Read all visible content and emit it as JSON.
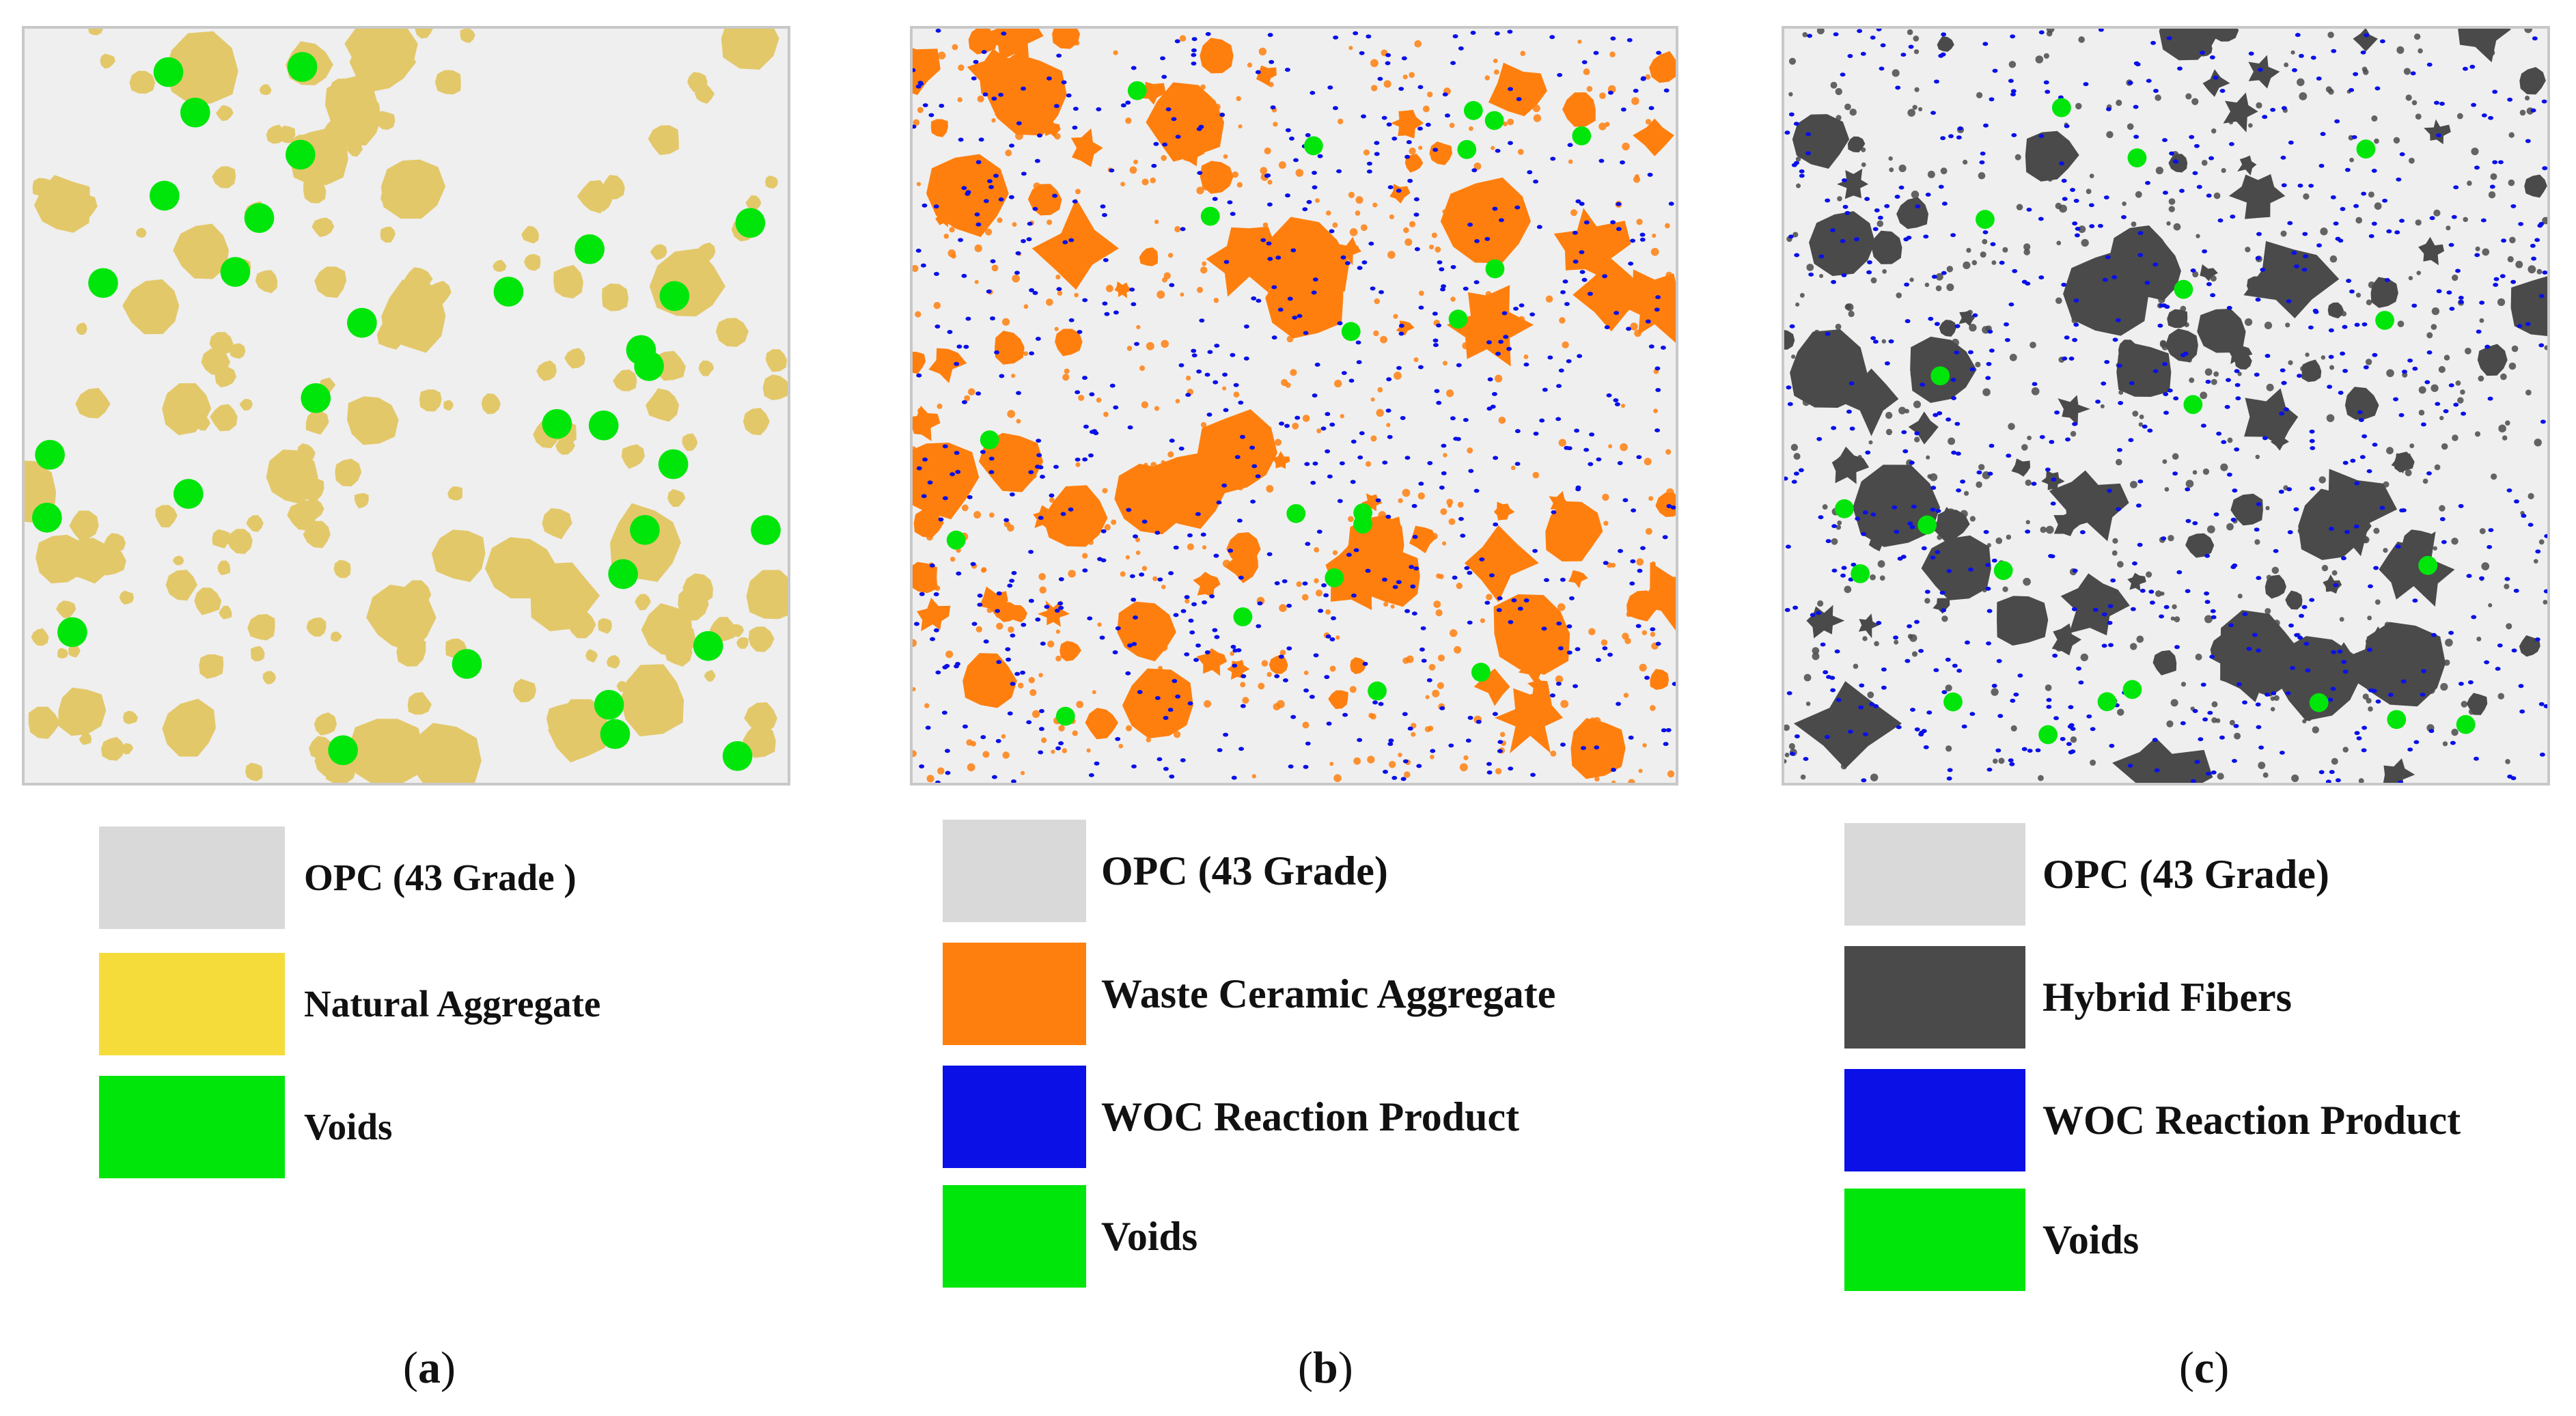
{
  "colors": {
    "opc": "#d9d9d9",
    "natural_aggregate": "#f5dc3a",
    "natural_aggregate_particle": "#e3c86a",
    "voids": "#00e60a",
    "waste_ceramic": "#ff7f0e",
    "woc": "#0a10e6",
    "hybrid_fibers": "#4a4a4a",
    "matrix": "#efefef"
  },
  "panels": [
    {
      "id": "a",
      "caption_open": "(",
      "caption_letter": "a",
      "caption_close": ")",
      "legend": [
        {
          "label": "OPC (43 Grade )",
          "color_key": "opc",
          "icon": "opc-swatch"
        },
        {
          "label": "Natural Aggregate",
          "color_key": "natural_aggregate",
          "icon": "natural-aggregate-swatch"
        },
        {
          "label": "Voids",
          "color_key": "voids",
          "icon": "voids-swatch"
        }
      ]
    },
    {
      "id": "b",
      "caption_open": "(",
      "caption_letter": "b",
      "caption_close": ")",
      "legend": [
        {
          "label": "OPC (43 Grade)",
          "color_key": "opc",
          "icon": "opc-swatch"
        },
        {
          "label": "Waste Ceramic Aggregate",
          "color_key": "waste_ceramic",
          "icon": "waste-ceramic-swatch"
        },
        {
          "label": "WOC Reaction Product",
          "color_key": "woc",
          "icon": "woc-swatch"
        },
        {
          "label": "Voids",
          "color_key": "voids",
          "icon": "voids-swatch"
        }
      ]
    },
    {
      "id": "c",
      "caption_open": "(",
      "caption_letter": "c",
      "caption_close": ")",
      "legend": [
        {
          "label": "OPC (43 Grade)",
          "color_key": "opc",
          "icon": "opc-swatch"
        },
        {
          "label": "Hybrid Fibers",
          "color_key": "hybrid_fibers",
          "icon": "hybrid-fibers-swatch"
        },
        {
          "label": "WOC Reaction Product",
          "color_key": "woc",
          "icon": "woc-swatch"
        },
        {
          "label": "Voids",
          "color_key": "voids",
          "icon": "voids-swatch"
        }
      ]
    }
  ]
}
